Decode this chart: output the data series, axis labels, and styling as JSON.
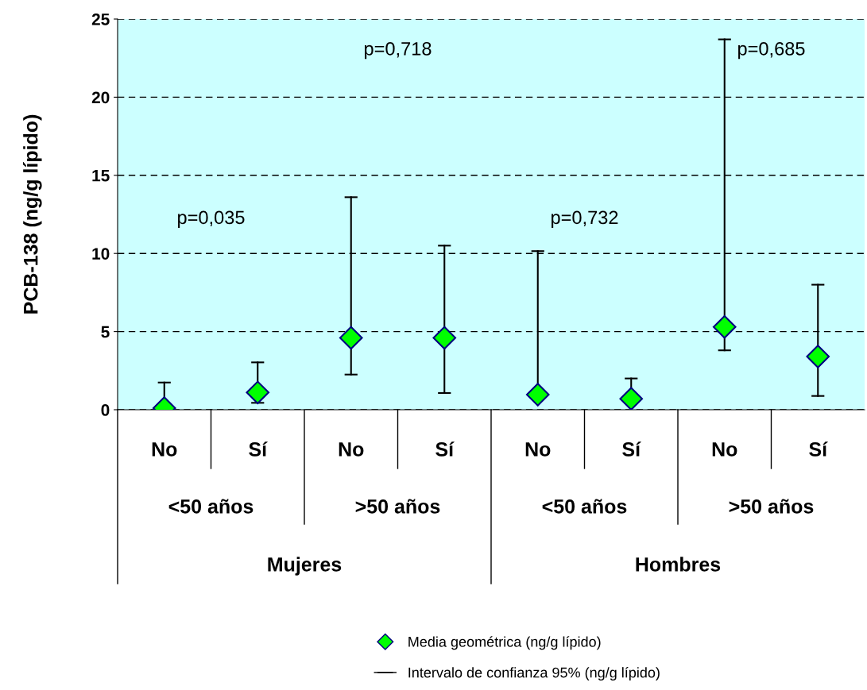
{
  "chart_data": {
    "type": "scatter",
    "ylabel": "PCB-138 (ng/g lípido)",
    "categories": [
      "No",
      "Sí",
      "No",
      "Sí",
      "No",
      "Sí",
      "No",
      "Sí"
    ],
    "series": [
      {
        "name": "Media geométrica (ng/g lípido)",
        "color": "#00ff00",
        "values": [
          0.1,
          1.1,
          4.6,
          4.6,
          0.97,
          0.7,
          5.3,
          3.4
        ],
        "errors": [
          [
            0.1,
            1.74
          ],
          [
            0.44,
            3.03
          ],
          [
            2.25,
            13.6
          ],
          [
            1.07,
            10.5
          ],
          [
            0.97,
            10.15
          ],
          [
            0.7,
            2.0
          ],
          [
            3.8,
            23.7
          ],
          [
            0.88,
            8.0
          ]
        ]
      }
    ],
    "ylim": [
      0,
      25
    ],
    "yticks": [
      0,
      5,
      10,
      15,
      20,
      25
    ],
    "grid": "y",
    "marker": "diamond",
    "legend": "bottom",
    "annotations": [
      "p=0,035",
      "p=0,718",
      "p=0,732",
      "p=0,685",
      "<50 años",
      ">50 años",
      "<50 años",
      ">50 años",
      "Mujeres",
      "Hombres",
      "Intervalo de confianza 95% (ng/g lípido)"
    ]
  }
}
